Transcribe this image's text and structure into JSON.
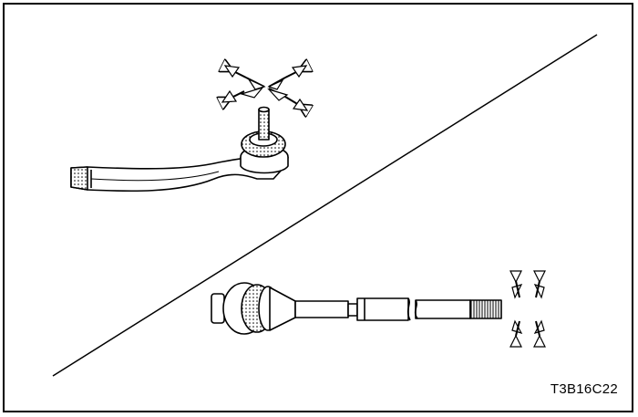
{
  "figure": {
    "code": "T3B16C22",
    "background_color": "#ffffff",
    "line_color": "#000000",
    "parts": [
      {
        "name": "outer-tie-rod-end",
        "icon": "tie-rod-end-icon"
      },
      {
        "name": "inner-tie-rod",
        "icon": "inner-tie-rod-icon"
      }
    ],
    "indicators": [
      "movement-arrows-icon"
    ]
  }
}
